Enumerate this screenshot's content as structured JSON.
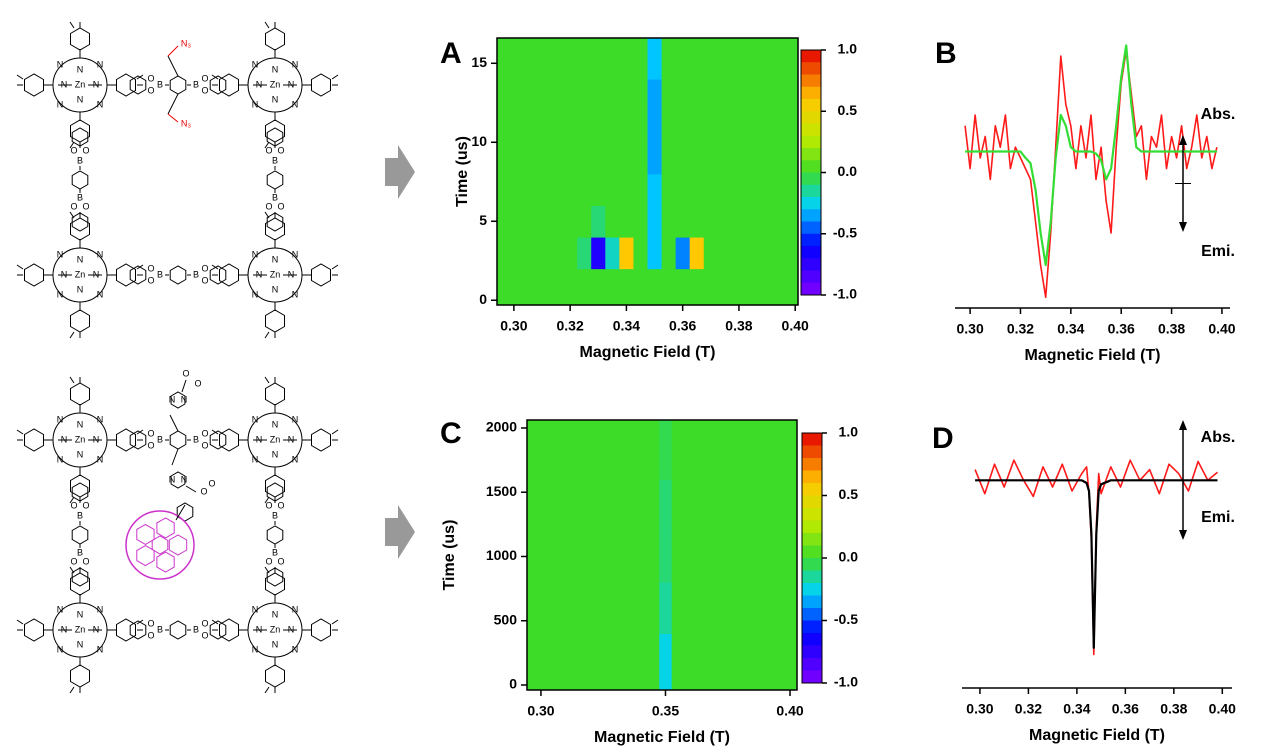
{
  "structures": [
    {
      "atoms": [
        "N",
        "Zn",
        "B",
        "O"
      ],
      "substituent": "N₃"
    },
    {
      "atoms": [
        "N",
        "Zn",
        "B",
        "O"
      ]
    }
  ],
  "chart_data": [
    {
      "type": "heatmap",
      "label": "A",
      "x_label": "Magnetic Field (T)",
      "y_label": "Time (us)",
      "xlim": [
        0.294,
        0.401
      ],
      "ylim": [
        -0.3,
        16.6
      ],
      "zlim": [
        -1,
        1
      ],
      "colormap": "rainbow",
      "xticks": [
        {
          "value": 0.3,
          "label": "0.30"
        },
        {
          "value": 0.32,
          "label": "0.32"
        },
        {
          "value": 0.34,
          "label": "0.34"
        },
        {
          "value": 0.36,
          "label": "0.36"
        },
        {
          "value": 0.38,
          "label": "0.38"
        },
        {
          "value": 0.4,
          "label": "0.40"
        }
      ],
      "yticks": [
        0,
        5,
        10,
        15
      ],
      "colorbar_ticks": [
        {
          "value": 1,
          "label": "1.0"
        },
        {
          "value": 0.5,
          "label": "0.5"
        },
        {
          "value": 0,
          "label": "0.0"
        },
        {
          "value": -0.5,
          "label": "-0.5"
        },
        {
          "value": -1,
          "label": "-1.0"
        }
      ],
      "x": [
        0.3,
        0.305,
        0.31,
        0.315,
        0.32,
        0.325,
        0.33,
        0.335,
        0.34,
        0.345,
        0.35,
        0.355,
        0.36,
        0.365,
        0.37,
        0.375,
        0.38,
        0.385,
        0.39,
        0.395,
        0.4
      ],
      "y": [
        1,
        3,
        5,
        7,
        9,
        11,
        13,
        15
      ],
      "z": [
        [
          0,
          0,
          0,
          0,
          0,
          0,
          0,
          0,
          0,
          0,
          0,
          0,
          0,
          0,
          0,
          0,
          0,
          0,
          0,
          0,
          0
        ],
        [
          0,
          0,
          0,
          0,
          0,
          -0.1,
          -0.7,
          -0.2,
          0.6,
          0,
          -0.3,
          0,
          -0.4,
          0.6,
          0,
          0,
          0,
          0,
          0,
          0,
          0
        ],
        [
          0,
          0,
          0,
          0,
          0,
          0,
          -0.1,
          0,
          0,
          0,
          -0.3,
          0,
          0,
          0,
          0,
          0,
          0,
          0,
          0,
          0,
          0
        ],
        [
          0,
          0,
          0,
          0,
          0,
          0,
          0,
          0,
          0,
          0,
          -0.3,
          0,
          0,
          0,
          0,
          0,
          0,
          0,
          0,
          0,
          0
        ],
        [
          0,
          0,
          0,
          0,
          0,
          0,
          0,
          0,
          0,
          0,
          -0.35,
          0,
          0,
          0,
          0,
          0,
          0,
          0,
          0,
          0,
          0
        ],
        [
          0,
          0,
          0,
          0,
          0,
          0,
          0,
          0,
          0,
          0,
          -0.35,
          0,
          0,
          0,
          0,
          0,
          0,
          0,
          0,
          0,
          0
        ],
        [
          0,
          0,
          0,
          0,
          0,
          0,
          0,
          0,
          0,
          0,
          -0.35,
          0,
          0,
          0,
          0,
          0,
          0,
          0,
          0,
          0,
          0
        ],
        [
          0,
          0,
          0,
          0,
          0,
          0,
          0,
          0,
          0,
          0,
          -0.3,
          0,
          0,
          0,
          0,
          0,
          0,
          0,
          0,
          0,
          0
        ]
      ]
    },
    {
      "type": "line",
      "label": "B",
      "x_label": "Magnetic Field (T)",
      "annotations": [
        "Abs.",
        "Emi."
      ],
      "xlim": [
        0.294,
        0.4032
      ],
      "ylim": [
        -1.2,
        1.3
      ],
      "xticks": [
        {
          "value": 0.3,
          "label": "0.30"
        },
        {
          "value": 0.32,
          "label": "0.32"
        },
        {
          "value": 0.34,
          "label": "0.34"
        },
        {
          "value": 0.36,
          "label": "0.36"
        },
        {
          "value": 0.38,
          "label": "0.38"
        },
        {
          "value": 0.4,
          "label": "0.40"
        }
      ],
      "x": [
        0.298,
        0.3,
        0.302,
        0.304,
        0.306,
        0.308,
        0.31,
        0.312,
        0.314,
        0.316,
        0.318,
        0.32,
        0.322,
        0.324,
        0.326,
        0.328,
        0.33,
        0.332,
        0.334,
        0.336,
        0.338,
        0.34,
        0.342,
        0.344,
        0.346,
        0.348,
        0.35,
        0.352,
        0.354,
        0.356,
        0.358,
        0.36,
        0.362,
        0.364,
        0.366,
        0.368,
        0.37,
        0.372,
        0.374,
        0.376,
        0.378,
        0.38,
        0.382,
        0.384,
        0.386,
        0.388,
        0.39,
        0.392,
        0.394,
        0.396,
        0.398
      ],
      "series": [
        {
          "color": "#ff1a1a",
          "values": [
            0.5,
            0.1,
            0.6,
            0.2,
            0.4,
            0.0,
            0.5,
            0.3,
            0.6,
            0.1,
            0.3,
            0.2,
            0.1,
            0.0,
            -0.4,
            -0.8,
            -1.1,
            -0.5,
            0.3,
            1.15,
            0.7,
            0.5,
            0.1,
            0.5,
            0.2,
            0.6,
            0.0,
            0.3,
            -0.2,
            -0.5,
            0.3,
            0.9,
            1.2,
            0.8,
            0.4,
            0.5,
            0.0,
            0.4,
            0.3,
            0.6,
            0.1,
            0.4,
            0.2,
            0.5,
            0.1,
            0.3,
            0.6,
            0.2,
            0.4,
            0.1,
            0.3
          ]
        },
        {
          "color": "#33dd33",
          "values": [
            0.26,
            0.26,
            0.26,
            0.26,
            0.26,
            0.26,
            0.26,
            0.26,
            0.26,
            0.26,
            0.26,
            0.26,
            0.2,
            0.15,
            -0.1,
            -0.5,
            -0.8,
            -0.4,
            0.2,
            0.6,
            0.5,
            0.3,
            0.26,
            0.26,
            0.26,
            0.26,
            0.24,
            0.18,
            0.0,
            0.1,
            0.5,
            0.95,
            1.25,
            0.7,
            0.3,
            0.26,
            0.26,
            0.26,
            0.26,
            0.26,
            0.26,
            0.26,
            0.26,
            0.26,
            0.26,
            0.26,
            0.26,
            0.26,
            0.26,
            0.26,
            0.26
          ]
        }
      ]
    },
    {
      "type": "heatmap",
      "label": "C",
      "x_label": "Magnetic Field (T)",
      "y_label": "Time (us)",
      "xlim": [
        0.2944,
        0.4028
      ],
      "ylim": [
        -39,
        2062
      ],
      "zlim": [
        -1,
        1
      ],
      "colormap": "rainbow",
      "xticks": [
        {
          "value": 0.3,
          "label": "0.30"
        },
        {
          "value": 0.35,
          "label": "0.35"
        },
        {
          "value": 0.4,
          "label": "0.40"
        }
      ],
      "yticks": [
        0,
        500,
        1000,
        1500,
        2000
      ],
      "colorbar_ticks": [
        {
          "value": 1,
          "label": "1.0"
        },
        {
          "value": 0.5,
          "label": "0.5"
        },
        {
          "value": 0,
          "label": "0.0"
        },
        {
          "value": -0.5,
          "label": "-0.5"
        },
        {
          "value": -1,
          "label": "-1.0"
        }
      ],
      "x": [
        0.3,
        0.305,
        0.31,
        0.315,
        0.32,
        0.325,
        0.33,
        0.335,
        0.34,
        0.345,
        0.35,
        0.355,
        0.36,
        0.365,
        0.37,
        0.375,
        0.38,
        0.385,
        0.39,
        0.395,
        0.4
      ],
      "y": [
        200,
        600,
        1000,
        1400,
        1800
      ],
      "z": [
        [
          0,
          0,
          0,
          0,
          0,
          0,
          0,
          0,
          0,
          0,
          -0.25,
          0,
          0,
          0,
          0,
          0,
          0,
          0,
          0,
          0,
          0
        ],
        [
          0,
          0,
          0,
          0,
          0,
          0,
          0,
          0,
          0,
          0,
          -0.15,
          0,
          0,
          0,
          0,
          0,
          0,
          0,
          0,
          0,
          0
        ],
        [
          0,
          0,
          0,
          0,
          0,
          0,
          0,
          0,
          0,
          0,
          -0.1,
          0,
          0,
          0,
          0,
          0,
          0,
          0,
          0,
          0,
          0
        ],
        [
          0,
          0,
          0,
          0,
          0,
          0,
          0,
          0,
          0,
          0,
          -0.1,
          0,
          0,
          0,
          0,
          0,
          0,
          0,
          0,
          0,
          0
        ],
        [
          0,
          0,
          0,
          0,
          0,
          0,
          0,
          0,
          0,
          0,
          -0.05,
          0,
          0,
          0,
          0,
          0,
          0,
          0,
          0,
          0,
          0
        ]
      ]
    },
    {
      "type": "line",
      "label": "D",
      "x_label": "Magnetic Field (T)",
      "annotations": [
        "Abs.",
        "Emi."
      ],
      "xlim": [
        0.2926,
        0.404
      ],
      "ylim": [
        -1.55,
        0.45
      ],
      "xticks": [
        {
          "value": 0.3,
          "label": "0.30"
        },
        {
          "value": 0.32,
          "label": "0.32"
        },
        {
          "value": 0.34,
          "label": "0.34"
        },
        {
          "value": 0.36,
          "label": "0.36"
        },
        {
          "value": 0.38,
          "label": "0.38"
        },
        {
          "value": 0.4,
          "label": "0.40"
        }
      ],
      "x": [
        0.298,
        0.302,
        0.306,
        0.31,
        0.314,
        0.318,
        0.322,
        0.326,
        0.33,
        0.334,
        0.338,
        0.342,
        0.344,
        0.345,
        0.346,
        0.347,
        0.348,
        0.349,
        0.35,
        0.354,
        0.358,
        0.362,
        0.366,
        0.37,
        0.374,
        0.378,
        0.382,
        0.386,
        0.39,
        0.394,
        0.398
      ],
      "series": [
        {
          "color": "#ff1a1a",
          "values": [
            0.08,
            -0.1,
            0.12,
            -0.05,
            0.15,
            0.0,
            -0.12,
            0.1,
            -0.05,
            0.12,
            -0.08,
            0.05,
            0.1,
            -0.1,
            -0.45,
            -1.3,
            -0.35,
            0.05,
            -0.1,
            0.1,
            -0.05,
            0.15,
            0.0,
            0.08,
            -0.1,
            0.12,
            0.05,
            -0.08,
            0.14,
            0.0,
            0.06
          ]
        },
        {
          "color": "#000000",
          "values": [
            0,
            0,
            0,
            0,
            0,
            0,
            0,
            0,
            0,
            0,
            0,
            0,
            -0.02,
            -0.08,
            -0.4,
            -1.25,
            -0.4,
            -0.08,
            -0.03,
            0,
            0,
            0,
            0,
            0,
            0,
            0,
            0,
            0,
            0,
            0,
            0
          ]
        }
      ]
    }
  ]
}
